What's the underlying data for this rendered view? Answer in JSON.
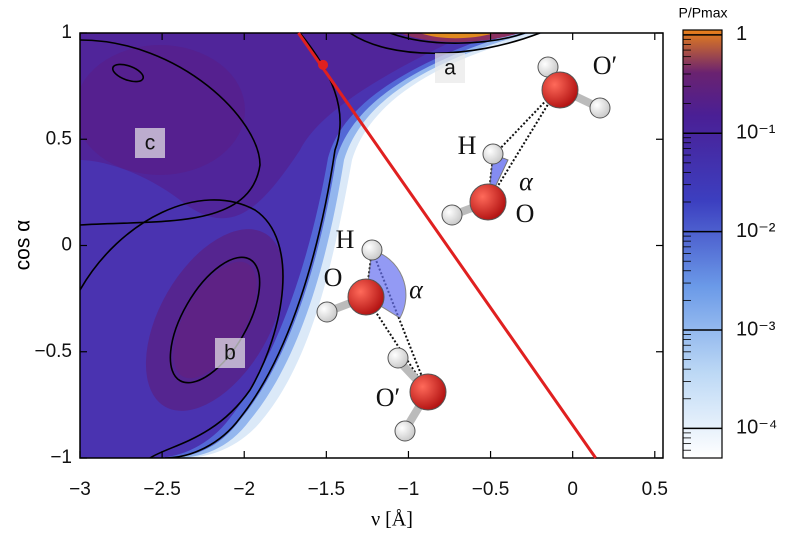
{
  "chart_data": {
    "type": "contour",
    "xlabel": "ν [Å]",
    "ylabel": "cos α",
    "xlim": [
      -3,
      0.55
    ],
    "ylim": [
      -1,
      1
    ],
    "xticks": [
      {
        "value": -3,
        "label": "−3"
      },
      {
        "value": -2.5,
        "label": "−2.5"
      },
      {
        "value": -2,
        "label": "−2"
      },
      {
        "value": -1.5,
        "label": "−1.5"
      },
      {
        "value": -1,
        "label": "−1"
      },
      {
        "value": -0.5,
        "label": "−0.5"
      },
      0,
      0.5
    ],
    "yticks": [
      {
        "value": -1,
        "label": "−1"
      },
      {
        "value": -0.5,
        "label": "−0.5"
      },
      0,
      0.5,
      1
    ],
    "lines": [
      {
        "x": [
          -1.67,
          0.14
        ],
        "y": [
          1,
          -1
        ],
        "color": "#e02020"
      }
    ],
    "points": [
      {
        "x": -1.52,
        "y": 0.85,
        "color": "#e02020"
      }
    ],
    "annotations": [
      "a",
      "b",
      "c"
    ],
    "molecule_labels": [
      "O′",
      "H",
      "α",
      "O",
      "H",
      "O",
      "α",
      "O′"
    ],
    "colorbar": {
      "label": "P/Pmax",
      "log": true,
      "clim": [
        5e-05,
        1.12
      ],
      "ticks": [
        {
          "value": 1,
          "label": "1"
        },
        {
          "value": 0.1,
          "label": "10⁻¹"
        },
        {
          "value": 0.01,
          "label": "10⁻²"
        },
        {
          "value": 0.001,
          "label": "10⁻³"
        },
        {
          "value": 0.0001,
          "label": "10⁻⁴"
        }
      ]
    }
  }
}
